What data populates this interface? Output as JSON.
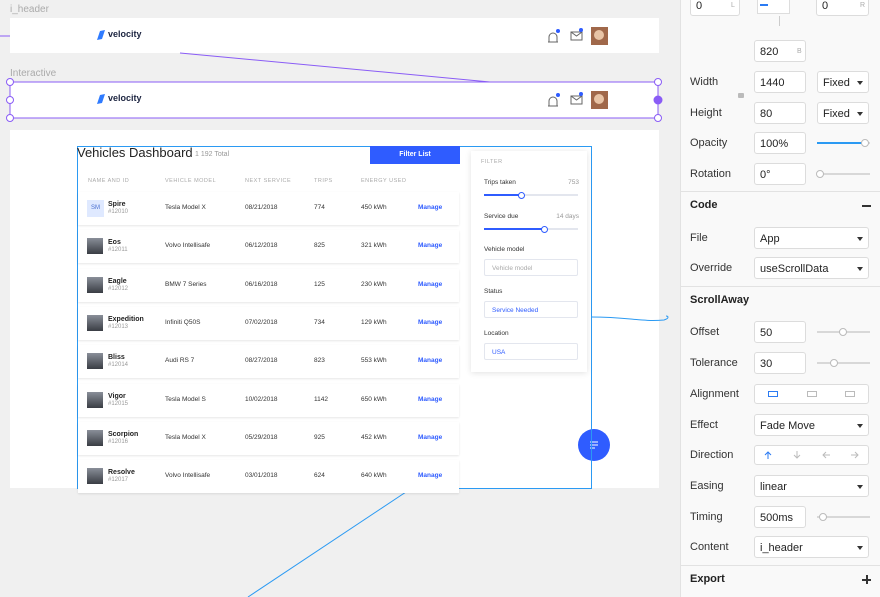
{
  "canvas": {
    "frames": [
      {
        "label": "i_header",
        "logo": "velocity"
      },
      {
        "label": "Interactive",
        "logo": "velocity"
      }
    ],
    "dashboard": {
      "title": "Vehicles Dashboard",
      "total": "1 192 Total",
      "button": "Filter List",
      "columns": [
        "NAME AND ID",
        "VEHICLE MODEL",
        "NEXT SERVICE",
        "TRIPS",
        "ENERGY USED"
      ],
      "rows": [
        {
          "initials": "SM",
          "name": "Spire",
          "id": "#12010",
          "model": "Tesla Model X",
          "next_service": "08/21/2018",
          "trips": "774",
          "energy": "450 kWh",
          "action": "Manage"
        },
        {
          "name": "Eos",
          "id": "#12011",
          "model": "Volvo Intellisafe",
          "next_service": "06/12/2018",
          "trips": "825",
          "energy": "321 kWh",
          "action": "Manage"
        },
        {
          "name": "Eagle",
          "id": "#12012",
          "model": "BMW 7 Series",
          "next_service": "06/16/2018",
          "trips": "125",
          "energy": "230 kWh",
          "action": "Manage"
        },
        {
          "name": "Expedition",
          "id": "#12013",
          "model": "Infiniti Q50S",
          "next_service": "07/02/2018",
          "trips": "734",
          "energy": "129 kWh",
          "action": "Manage"
        },
        {
          "name": "Bliss",
          "id": "#12014",
          "model": "Audi RS 7",
          "next_service": "08/27/2018",
          "trips": "823",
          "energy": "553 kWh",
          "action": "Manage"
        },
        {
          "name": "Vigor",
          "id": "#12015",
          "model": "Tesla Model S",
          "next_service": "10/02/2018",
          "trips": "1142",
          "energy": "650 kWh",
          "action": "Manage"
        },
        {
          "name": "Scorpion",
          "id": "#12016",
          "model": "Tesla Model X",
          "next_service": "05/29/2018",
          "trips": "925",
          "energy": "452 kWh",
          "action": "Manage"
        },
        {
          "name": "Resolve",
          "id": "#12017",
          "model": "Volvo Intellisafe",
          "next_service": "03/01/2018",
          "trips": "624",
          "energy": "640 kWh",
          "action": "Manage"
        }
      ]
    },
    "filter": {
      "title": "FILTER",
      "trips_label": "Trips taken",
      "trips_value": "753",
      "service_label": "Service due",
      "service_value": "14 days",
      "model_label": "Vehicle model",
      "model_placeholder": "Vehicle model",
      "status_label": "Status",
      "status_value": "Service Needed",
      "location_label": "Location",
      "location_value": "USA"
    }
  },
  "panel": {
    "position": [
      {
        "value": "0",
        "unit": "L"
      },
      {
        "value": "0",
        "unit": "R"
      },
      {
        "value": "820",
        "unit": "B"
      }
    ],
    "properties": [
      {
        "label": "Width",
        "value": "1440",
        "mode": "Fixed"
      },
      {
        "label": "Height",
        "value": "80",
        "mode": "Fixed"
      },
      {
        "label": "Opacity",
        "value": "100%"
      },
      {
        "label": "Rotation",
        "value": "0°"
      }
    ],
    "code": {
      "title": "Code",
      "fields": [
        {
          "label": "File",
          "value": "App"
        },
        {
          "label": "Override",
          "value": "useScrollData"
        }
      ]
    },
    "scrollaway": {
      "title": "ScrollAway",
      "fields": [
        {
          "label": "Offset",
          "value": "50"
        },
        {
          "label": "Tolerance",
          "value": "30"
        },
        {
          "label": "Alignment"
        },
        {
          "label": "Effect",
          "value": "Fade Move"
        },
        {
          "label": "Direction"
        },
        {
          "label": "Easing",
          "value": "linear"
        },
        {
          "label": "Timing",
          "value": "500ms"
        },
        {
          "label": "Content",
          "value": "i_header"
        }
      ]
    },
    "export": "Export"
  }
}
